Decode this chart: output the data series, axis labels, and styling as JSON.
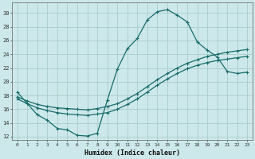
{
  "xlabel": "Humidex (Indice chaleur)",
  "bg_color": "#cce8ea",
  "grid_color": "#aacccc",
  "line_color": "#1a6b6b",
  "xlim": [
    -0.5,
    23.5
  ],
  "ylim": [
    11.5,
    31.5
  ],
  "xticks": [
    0,
    1,
    2,
    3,
    4,
    5,
    6,
    7,
    8,
    9,
    10,
    11,
    12,
    13,
    14,
    15,
    16,
    17,
    18,
    19,
    20,
    21,
    22,
    23
  ],
  "yticks": [
    12,
    14,
    16,
    18,
    20,
    22,
    24,
    26,
    28,
    30
  ],
  "curve1_x": [
    0,
    1,
    2,
    3,
    4,
    5,
    6,
    7,
    8,
    9,
    10,
    11,
    12,
    13,
    14,
    15,
    16,
    17,
    18,
    19,
    20,
    21,
    22,
    23
  ],
  "curve1_y": [
    18.5,
    16.8,
    15.2,
    14.4,
    13.2,
    13.0,
    12.2,
    12.1,
    12.5,
    17.3,
    21.8,
    24.8,
    26.3,
    29.0,
    30.2,
    30.5,
    29.7,
    28.7,
    25.8,
    24.6,
    23.6,
    21.5,
    21.2,
    21.4
  ],
  "curve2_x": [
    0,
    1,
    2,
    3,
    4,
    5,
    6,
    7,
    8,
    9,
    10,
    11,
    12,
    13,
    14,
    15,
    16,
    17,
    18,
    19,
    20,
    21,
    22,
    23
  ],
  "curve2_y": [
    17.8,
    17.2,
    16.7,
    16.4,
    16.2,
    16.1,
    16.0,
    15.9,
    16.1,
    16.4,
    16.8,
    17.5,
    18.3,
    19.3,
    20.3,
    21.2,
    22.0,
    22.7,
    23.2,
    23.7,
    24.0,
    24.3,
    24.5,
    24.7
  ],
  "curve3_x": [
    0,
    1,
    2,
    3,
    4,
    5,
    6,
    7,
    8,
    9,
    10,
    11,
    12,
    13,
    14,
    15,
    16,
    17,
    18,
    19,
    20,
    21,
    22,
    23
  ],
  "curve3_y": [
    17.5,
    16.8,
    16.2,
    15.8,
    15.5,
    15.3,
    15.2,
    15.1,
    15.3,
    15.5,
    16.0,
    16.7,
    17.5,
    18.5,
    19.5,
    20.4,
    21.2,
    21.9,
    22.4,
    22.8,
    23.1,
    23.3,
    23.5,
    23.7
  ]
}
